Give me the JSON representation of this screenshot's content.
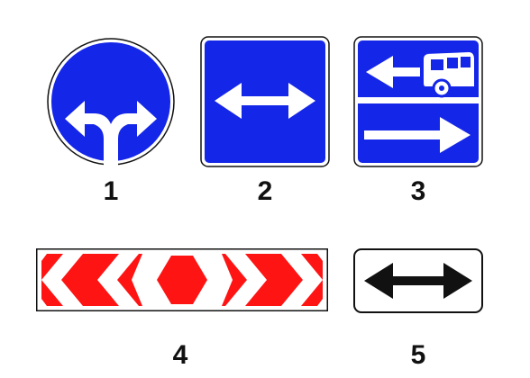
{
  "colors": {
    "blue": "#1426e8",
    "red": "#ff1414",
    "white": "#ffffff",
    "black": "#111111"
  },
  "signs": [
    {
      "number": "1",
      "icon": "go-left-or-right-sign-icon"
    },
    {
      "number": "2",
      "icon": "left-right-arrows-sign-icon"
    },
    {
      "number": "3",
      "icon": "bus-lane-sign-icon"
    },
    {
      "number": "4",
      "icon": "chevron-direction-board-icon"
    },
    {
      "number": "5",
      "icon": "two-way-arrow-plate-icon"
    }
  ]
}
